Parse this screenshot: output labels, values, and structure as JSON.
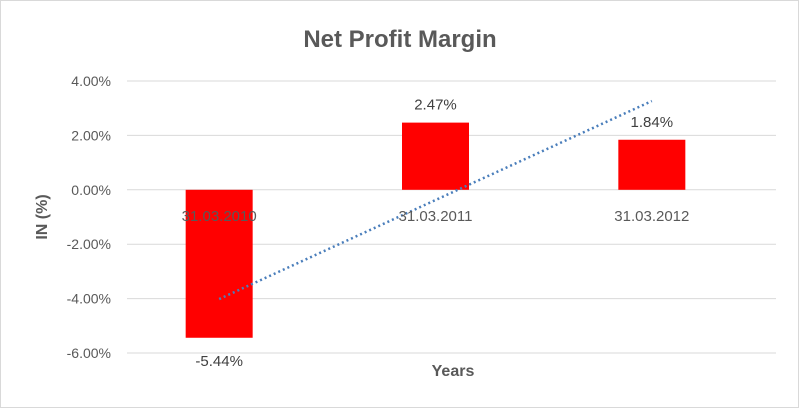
{
  "chart_data": {
    "type": "bar",
    "title": "Net Profit Margin",
    "xlabel": "Years",
    "ylabel": "IN (%)",
    "categories": [
      "31.03.2010",
      "31.03.2011",
      "31.03.2012"
    ],
    "series": [
      {
        "values": [
          -5.44,
          2.47,
          1.84
        ],
        "color": "#ff0000"
      }
    ],
    "data_labels": [
      "-5.44%",
      "2.47%",
      "1.84%"
    ],
    "y_ticks": [
      "4.00%",
      "2.00%",
      "0.00%",
      "-2.00%",
      "-4.00%",
      "-6.00%"
    ],
    "y_tick_values": [
      4,
      2,
      0,
      -2,
      -4,
      -6
    ],
    "ylim": [
      -6,
      4
    ],
    "gridlines": true,
    "trendline": {
      "type": "linear",
      "style": "dotted",
      "color": "#4a7ebb"
    }
  }
}
